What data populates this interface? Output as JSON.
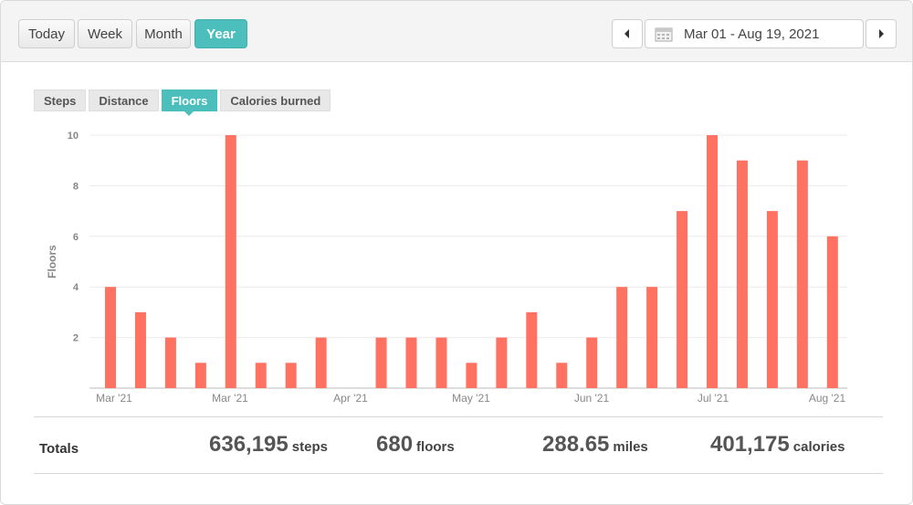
{
  "range_buttons": [
    "Today",
    "Week",
    "Month",
    "Year"
  ],
  "active_range": "Year",
  "date_range": "Mar 01 - Aug 19, 2021",
  "tabs": [
    "Steps",
    "Distance",
    "Floors",
    "Calories burned"
  ],
  "active_tab": "Floors",
  "icons": {
    "prev": "chevron-left-icon",
    "next": "chevron-right-icon",
    "calendar": "calendar-icon"
  },
  "colors": {
    "accent": "#4cbfbd",
    "bar": "#ff7262"
  },
  "chart_data": {
    "type": "bar",
    "ylabel": "Floors",
    "ylim": [
      0,
      10
    ],
    "yticks": [
      2,
      4,
      6,
      8,
      10
    ],
    "x_ticks": [
      "Mar '21",
      "Mar '21",
      "Apr '21",
      "May '21",
      "Jun '21",
      "Jul '21",
      "Aug '21"
    ],
    "values": [
      4,
      3,
      2,
      1,
      10,
      1,
      1,
      2,
      0,
      2,
      2,
      2,
      1,
      2,
      3,
      1,
      2,
      4,
      4,
      7,
      10,
      9,
      7,
      9,
      6
    ],
    "grid": true,
    "legend": false
  },
  "totals": {
    "label": "Totals",
    "items": [
      {
        "value": "636,195",
        "unit": "steps"
      },
      {
        "value": "680",
        "unit": "floors"
      },
      {
        "value": "288.65",
        "unit": "miles"
      },
      {
        "value": "401,175",
        "unit": "calories"
      }
    ]
  }
}
